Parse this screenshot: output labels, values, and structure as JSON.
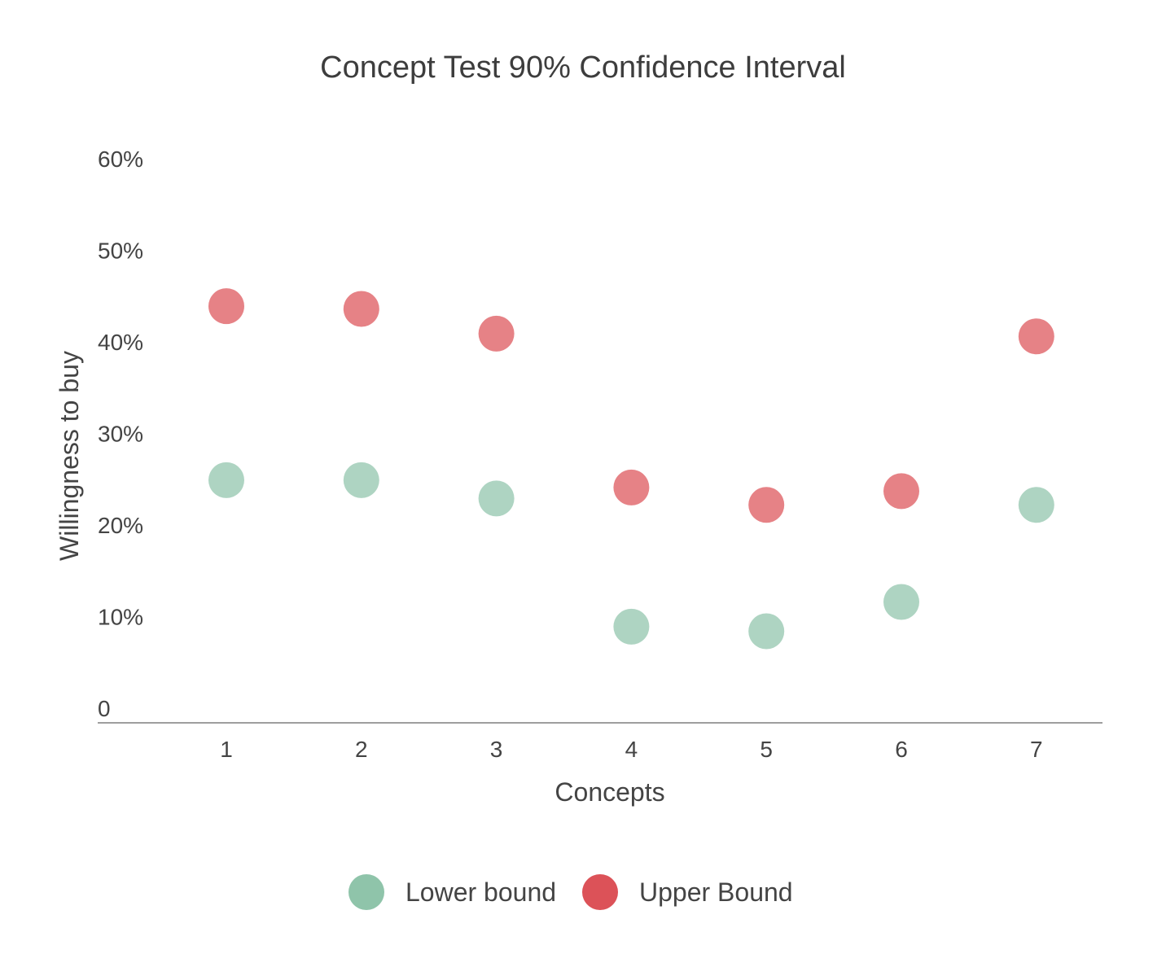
{
  "chart_data": {
    "type": "scatter",
    "title": "Concept Test 90% Confidence Interval",
    "xlabel": "Concepts",
    "ylabel": "Willingness to buy",
    "categories": [
      "1",
      "2",
      "3",
      "4",
      "5",
      "6",
      "7"
    ],
    "x": [
      1,
      2,
      3,
      4,
      5,
      6,
      7
    ],
    "ylim": [
      0,
      60
    ],
    "yticks": [
      {
        "value": 0,
        "label": "0"
      },
      {
        "value": 10,
        "label": "10%"
      },
      {
        "value": 20,
        "label": "20%"
      },
      {
        "value": 30,
        "label": "30%"
      },
      {
        "value": 40,
        "label": "40%"
      },
      {
        "value": 50,
        "label": "50%"
      },
      {
        "value": 60,
        "label": "60%"
      }
    ],
    "grid": false,
    "legend_position": "bottom",
    "series": [
      {
        "name": "Lower bound",
        "color": "#8fc4aa",
        "values": [
          26.5,
          26.5,
          24.5,
          10.5,
          10.0,
          13.2,
          23.8
        ]
      },
      {
        "name": "Upper Bound",
        "color": "#dc5258",
        "values": [
          45.5,
          45.2,
          42.5,
          25.7,
          23.8,
          25.3,
          42.2
        ]
      }
    ]
  }
}
